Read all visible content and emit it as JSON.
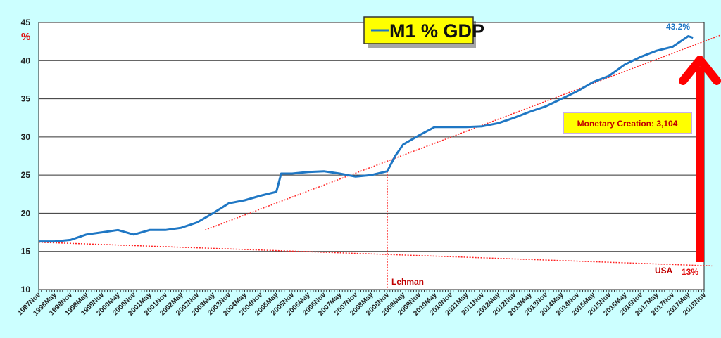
{
  "chart_data": {
    "type": "line",
    "title": "M1 % GDP",
    "ylabel": "%",
    "xlabel": "",
    "ylim": [
      10,
      45
    ],
    "yticks": [
      10,
      15,
      20,
      25,
      30,
      35,
      40,
      45
    ],
    "grid": true,
    "legend": "top-center",
    "xticks": [
      "1997Nov",
      "1998May",
      "1998Nov",
      "1999May",
      "1999Nov",
      "2000May",
      "2000Nov",
      "2001May",
      "2001Nov",
      "2002May",
      "2002Nov",
      "2003May",
      "2003Nov",
      "2004May",
      "2004Nov",
      "2005May",
      "2005Nov",
      "2006May",
      "2006Nov",
      "2007May",
      "2007Nov",
      "2008May",
      "2008Nov",
      "2009May",
      "2009Nov",
      "2010May",
      "2010Nov",
      "2011May",
      "2011Nov",
      "2012May",
      "2012Nov",
      "2013May",
      "2013Nov",
      "2014May",
      "2014Nov",
      "2015May",
      "2015Nov",
      "2016May",
      "2016Nov",
      "2017May",
      "2017Nov",
      "2017May",
      "2018Nov"
    ],
    "series": [
      {
        "name": "M1 % GDP",
        "color": "#1f77c4",
        "x_index": [
          0,
          1,
          2,
          3,
          4,
          5,
          6,
          7,
          8,
          9,
          10,
          11,
          12,
          13,
          14,
          15,
          15.3,
          16,
          17,
          18,
          19,
          20,
          21,
          22,
          22.5,
          23,
          24,
          25,
          26,
          27,
          28,
          29,
          30,
          31,
          32,
          33,
          34,
          35,
          36,
          37,
          38,
          39,
          40,
          41,
          41.3
        ],
        "values": [
          16.3,
          16.3,
          16.5,
          17.2,
          17.5,
          17.8,
          17.2,
          17.8,
          17.8,
          18.1,
          18.8,
          20.0,
          21.3,
          21.7,
          22.3,
          22.8,
          25.2,
          25.2,
          25.4,
          25.5,
          25.2,
          24.8,
          25.0,
          25.5,
          27.5,
          29.0,
          30.2,
          31.3,
          31.3,
          31.3,
          31.4,
          31.8,
          32.5,
          33.3,
          34.0,
          35.0,
          36.0,
          37.2,
          38.0,
          39.5,
          40.5,
          41.3,
          41.8,
          43.2,
          43.0
        ]
      }
    ],
    "annotations": {
      "end_value": "43.2%",
      "box": "Monetary Creation: 3,104",
      "event": "Lehman",
      "country": "USA",
      "base_value": "13%"
    },
    "trendlines": [
      {
        "name": "growth-trend",
        "from": [
          10.5,
          17.8
        ],
        "to": [
          43.5,
          43.7
        ]
      },
      {
        "name": "baseline-trend",
        "from": [
          0,
          16.2
        ],
        "to": [
          42.5,
          13.1
        ]
      }
    ],
    "event_x_index": 22
  }
}
